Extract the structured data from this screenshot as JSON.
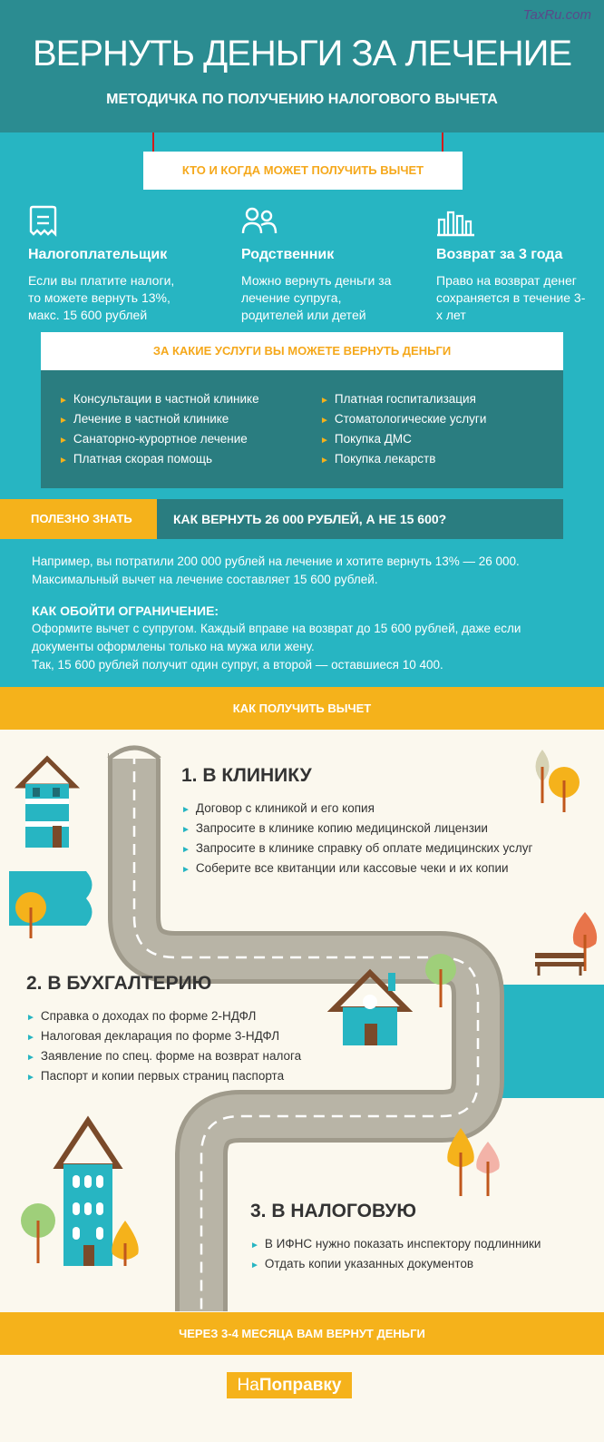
{
  "watermark": "TaxRu.com",
  "header": {
    "title": "ВЕРНУТЬ ДЕНЬГИ ЗА ЛЕЧЕНИЕ",
    "subtitle": "МЕТОДИЧКА ПО ПОЛУЧЕНИЮ НАЛОГОВОГО ВЫЧЕТА"
  },
  "who": {
    "banner": "КТО И КОГДА МОЖЕТ ПОЛУЧИТЬ ВЫЧЕТ",
    "columns": [
      {
        "icon": "receipt-icon",
        "title": "Налогоплательщик",
        "text": "Если вы платите налоги, то можете вернуть 13%, макс. 15 600 рублей"
      },
      {
        "icon": "people-icon",
        "title": "Родственник",
        "text": "Можно вернуть деньги за лечение супруга, родителей или детей"
      },
      {
        "icon": "bar-chart-icon",
        "title": "Возврат за 3 года",
        "text": "Право на возврат денег сохраняется в течение 3-х лет"
      }
    ]
  },
  "services": {
    "heading": "ЗА КАКИЕ УСЛУГИ ВЫ МОЖЕТЕ ВЕРНУТЬ ДЕНЬГИ",
    "left": [
      "Консультации в частной клинике",
      "Лечение в частной клинике",
      "Санаторно-курортное лечение",
      "Платная скорая помощь"
    ],
    "right": [
      "Платная госпитализация",
      "Стоматологические услуги",
      "Покупка ДМС",
      "Покупка лекарств"
    ]
  },
  "tip": {
    "label": "ПОЛЕЗНО ЗНАТЬ",
    "title": "КАК ВЕРНУТЬ 26 000 РУБЛЕЙ, А НЕ 15 600?",
    "p1": "Например, вы потратили 200 000 рублей на лечение и хотите вернуть 13% — 26 000.",
    "p2": "Максимальный вычет на лечение составляет 15 600 рублей.",
    "subheading": "КАК ОБОЙТИ ОГРАНИЧЕНИЕ:",
    "p3": "Оформите вычет с супругом. Каждый вправе на возврат до 15 600 рублей, даже если документы оформлены только на мужа или жену.",
    "p4": "Так, 15 600 рублей получит один супруг, а второй — оставшиеся 10 400."
  },
  "how": {
    "band": "КАК ПОЛУЧИТЬ ВЫЧЕТ"
  },
  "steps": [
    {
      "title": "1. В КЛИНИКУ",
      "items": [
        "Договор с клиникой и его копия",
        "Запросите в клинике копию медицинской лицензии",
        "Запросите в клинике справку об оплате медицинских услуг",
        "Соберите все квитанции или кассовые чеки и их копии"
      ]
    },
    {
      "title": "2. В БУХГАЛТЕРИЮ",
      "items": [
        "Справка о доходах по форме 2-НДФЛ",
        "Налоговая декларация по форме 3-НДФЛ",
        "Заявление по спец. форме на возврат налога",
        "Паспорт и копии первых страниц паспорта"
      ]
    },
    {
      "title": "3. В НАЛОГОВУЮ",
      "items": [
        "В ИФНС нужно показать инспектору подлинники",
        "Отдать копии указанных документов"
      ]
    }
  ],
  "final_band": "ЧЕРЕЗ 3-4 МЕСЯЦА ВАМ ВЕРНУТ ДЕНЬГИ",
  "logo": {
    "part1": "На",
    "part2": "Поправку"
  },
  "colors": {
    "header": "#2b8c91",
    "teal": "#27b5c2",
    "dark_teal": "#2a7d80",
    "yellow": "#f5b21b",
    "cream": "#fbf8ee",
    "road": "#b5b1a3"
  }
}
